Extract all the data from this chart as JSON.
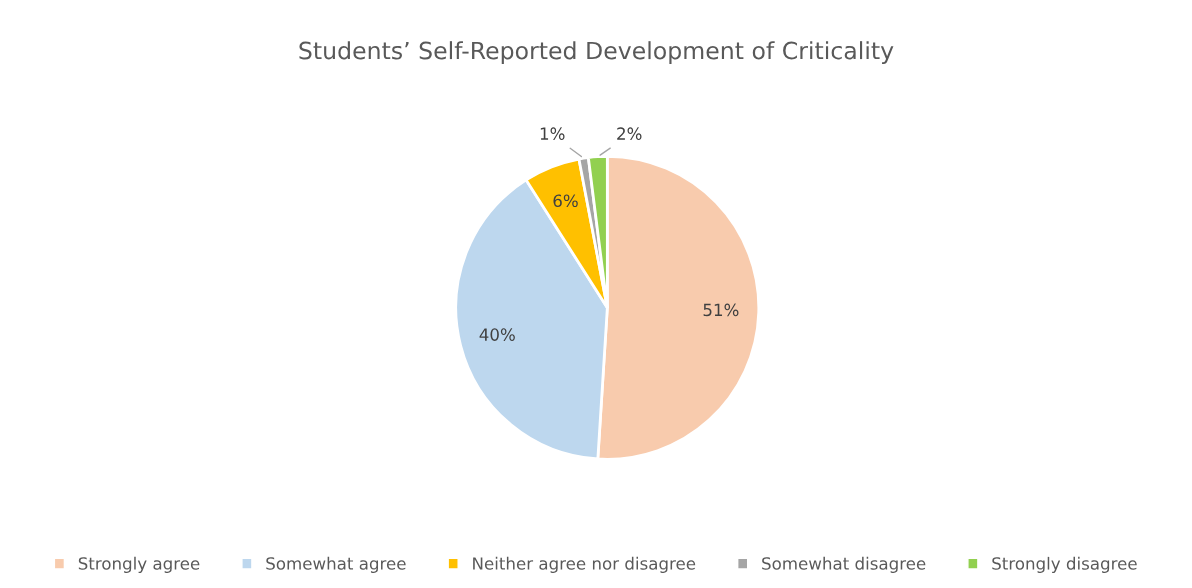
{
  "chart_data": {
    "type": "pie",
    "title": "Students’ Self-Reported Development of Criticality",
    "categories": [
      "Strongly agree",
      "Somewhat agree",
      "Neither agree nor disagree",
      "Somewhat disagree",
      "Strongly disagree"
    ],
    "values": [
      51,
      40,
      6,
      1,
      2
    ],
    "colors": [
      "#f8cbad",
      "#bdd7ee",
      "#ffc000",
      "#a5a5a5",
      "#92d050"
    ],
    "value_labels": [
      "51%",
      "40%",
      "6%",
      "1%",
      "2%"
    ],
    "legend": "bottom"
  }
}
